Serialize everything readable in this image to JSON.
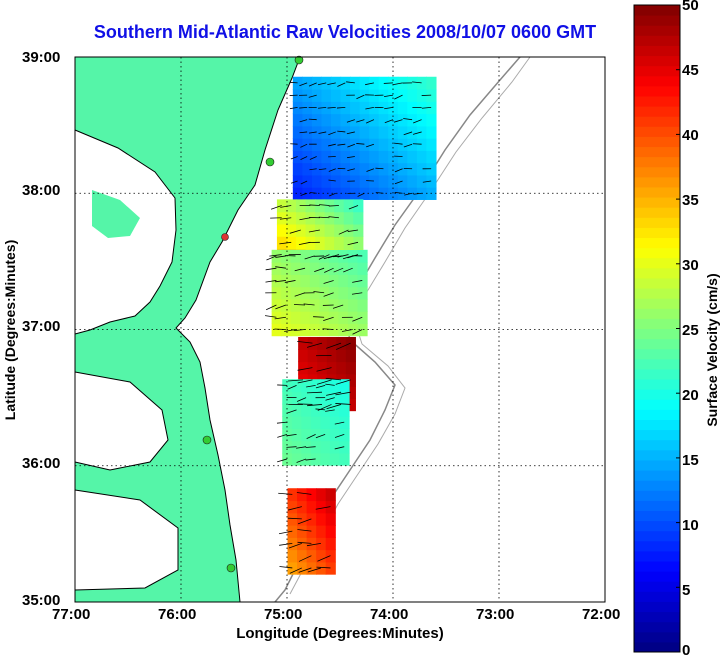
{
  "title": "Southern Mid-Atlantic Raw Velocities 2008/10/07 0600 GMT",
  "x_axis": {
    "label": "Longitude (Degrees:Minutes)",
    "ticks": [
      "77:00",
      "76:00",
      "75:00",
      "74:00",
      "73:00",
      "72:00"
    ],
    "range": [
      -77,
      -72
    ]
  },
  "y_axis": {
    "label": "Latitude (Degrees:Minutes)",
    "ticks": [
      "39:00",
      "38:00",
      "37:00",
      "36:00",
      "35:00"
    ],
    "range": [
      35,
      39
    ]
  },
  "colorbar": {
    "label": "Surface Velocity (cm/s)",
    "ticks": [
      "50",
      "45",
      "40",
      "35",
      "30",
      "25",
      "20",
      "15",
      "10",
      "5",
      "0"
    ],
    "range": [
      0,
      50
    ],
    "colormap": "jet"
  },
  "colors": {
    "land": "#55f5a8",
    "title": "#1010e6",
    "coast_line": "#000000",
    "bathymetry": "#888888",
    "station_marker": "#33cc33",
    "station_marker_alt": "#dd3333"
  },
  "grid": "dotted",
  "markers": {
    "station_count": 5
  }
}
